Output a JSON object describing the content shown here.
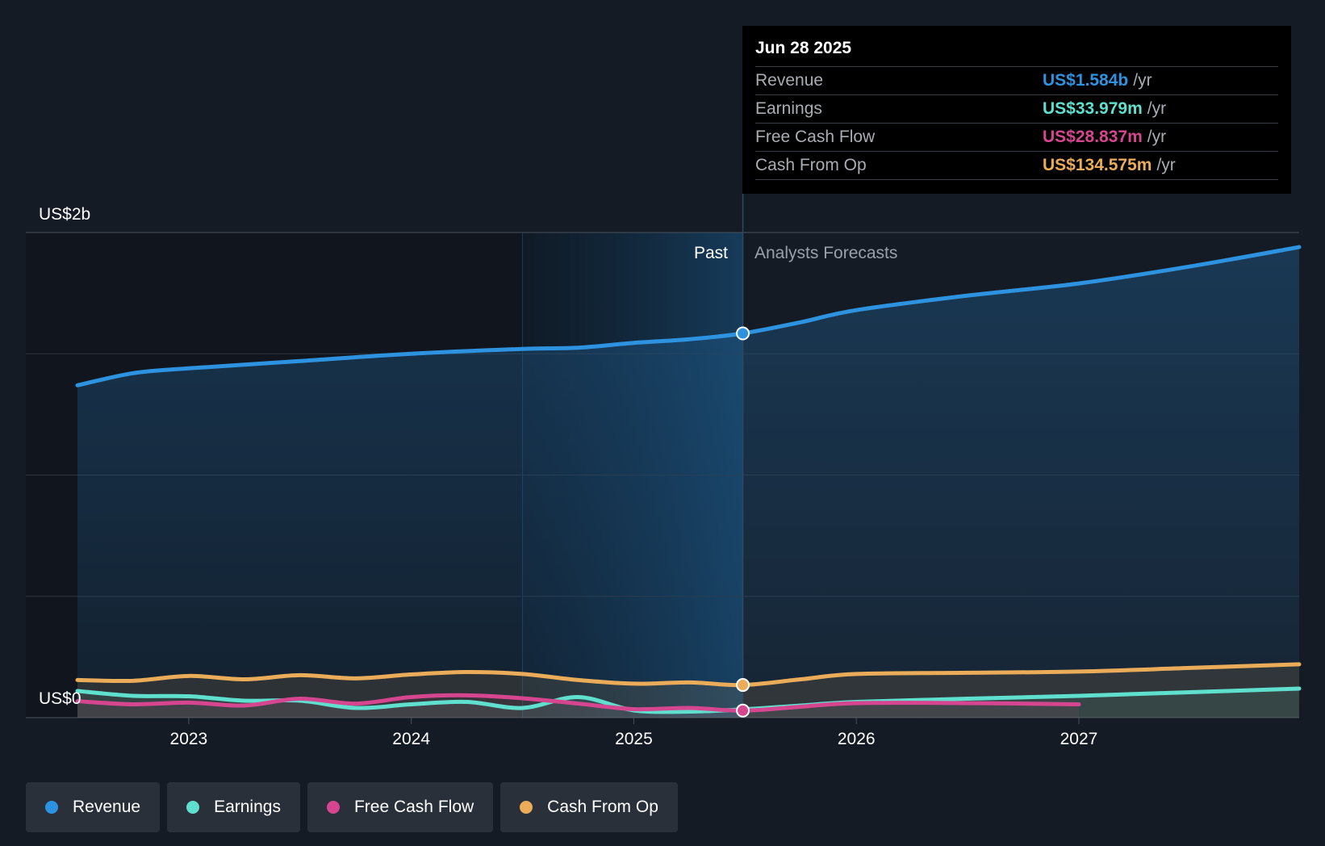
{
  "chart_data": {
    "type": "line",
    "y_axis": {
      "top_label": "US$2b",
      "bottom_label": "US$0",
      "ylim": [
        0,
        2.0
      ],
      "unit": "US$ billions"
    },
    "x_ticks": [
      "2023",
      "2024",
      "2025",
      "2026",
      "2027"
    ],
    "x_range": [
      2022.5,
      2027.99
    ],
    "past_label": "Past",
    "forecast_label": "Analysts Forecasts",
    "divider_x": 2025.49,
    "shade_start_x": 2024.5,
    "series": [
      {
        "name": "Revenue",
        "color": "#2d93e0",
        "points": [
          [
            2022.5,
            1.37
          ],
          [
            2022.75,
            1.42
          ],
          [
            2023.0,
            1.44
          ],
          [
            2023.5,
            1.47
          ],
          [
            2024.0,
            1.5
          ],
          [
            2024.5,
            1.52
          ],
          [
            2024.75,
            1.525
          ],
          [
            2025.0,
            1.545
          ],
          [
            2025.25,
            1.56
          ],
          [
            2025.49,
            1.584
          ],
          [
            2025.75,
            1.63
          ],
          [
            2026.0,
            1.68
          ],
          [
            2026.5,
            1.74
          ],
          [
            2027.0,
            1.79
          ],
          [
            2027.5,
            1.86
          ],
          [
            2027.99,
            1.94
          ]
        ]
      },
      {
        "name": "Earnings",
        "color": "#5fe0cf",
        "points": [
          [
            2022.5,
            0.11
          ],
          [
            2022.75,
            0.09
          ],
          [
            2023.0,
            0.088
          ],
          [
            2023.25,
            0.07
          ],
          [
            2023.5,
            0.07
          ],
          [
            2023.75,
            0.04
          ],
          [
            2024.0,
            0.055
          ],
          [
            2024.25,
            0.065
          ],
          [
            2024.5,
            0.04
          ],
          [
            2024.75,
            0.085
          ],
          [
            2025.0,
            0.03
          ],
          [
            2025.25,
            0.025
          ],
          [
            2025.49,
            0.034
          ],
          [
            2025.75,
            0.05
          ],
          [
            2026.0,
            0.065
          ],
          [
            2026.5,
            0.078
          ],
          [
            2027.0,
            0.09
          ],
          [
            2027.5,
            0.105
          ],
          [
            2027.99,
            0.12
          ]
        ]
      },
      {
        "name": "Free Cash Flow",
        "color": "#d6458f",
        "points": [
          [
            2022.5,
            0.068
          ],
          [
            2022.75,
            0.055
          ],
          [
            2023.0,
            0.062
          ],
          [
            2023.25,
            0.05
          ],
          [
            2023.5,
            0.078
          ],
          [
            2023.75,
            0.058
          ],
          [
            2024.0,
            0.085
          ],
          [
            2024.25,
            0.092
          ],
          [
            2024.5,
            0.08
          ],
          [
            2024.75,
            0.058
          ],
          [
            2025.0,
            0.035
          ],
          [
            2025.25,
            0.04
          ],
          [
            2025.49,
            0.029
          ],
          [
            2025.75,
            0.045
          ],
          [
            2026.0,
            0.06
          ],
          [
            2026.5,
            0.06
          ],
          [
            2027.0,
            0.055
          ]
        ]
      },
      {
        "name": "Cash From Op",
        "color": "#eaac58",
        "points": [
          [
            2022.5,
            0.155
          ],
          [
            2022.75,
            0.152
          ],
          [
            2023.0,
            0.172
          ],
          [
            2023.25,
            0.158
          ],
          [
            2023.5,
            0.175
          ],
          [
            2023.75,
            0.162
          ],
          [
            2024.0,
            0.178
          ],
          [
            2024.25,
            0.188
          ],
          [
            2024.5,
            0.18
          ],
          [
            2024.75,
            0.155
          ],
          [
            2025.0,
            0.14
          ],
          [
            2025.25,
            0.145
          ],
          [
            2025.49,
            0.1346
          ],
          [
            2025.75,
            0.158
          ],
          [
            2026.0,
            0.18
          ],
          [
            2026.5,
            0.185
          ],
          [
            2027.0,
            0.19
          ],
          [
            2027.5,
            0.205
          ],
          [
            2027.99,
            0.22
          ]
        ]
      }
    ]
  },
  "tooltip": {
    "date": "Jun 28 2025",
    "rows": [
      {
        "label": "Revenue",
        "value": "US$1.584b",
        "unit": "/yr",
        "color": "#2d93e0"
      },
      {
        "label": "Earnings",
        "value": "US$33.979m",
        "unit": "/yr",
        "color": "#5fe0cf"
      },
      {
        "label": "Free Cash Flow",
        "value": "US$28.837m",
        "unit": "/yr",
        "color": "#d6458f"
      },
      {
        "label": "Cash From Op",
        "value": "US$134.575m",
        "unit": "/yr",
        "color": "#eaac58"
      }
    ]
  },
  "legend": [
    {
      "label": "Revenue",
      "color": "#2d93e0"
    },
    {
      "label": "Earnings",
      "color": "#5fe0cf"
    },
    {
      "label": "Free Cash Flow",
      "color": "#d6458f"
    },
    {
      "label": "Cash From Op",
      "color": "#eaac58"
    }
  ]
}
